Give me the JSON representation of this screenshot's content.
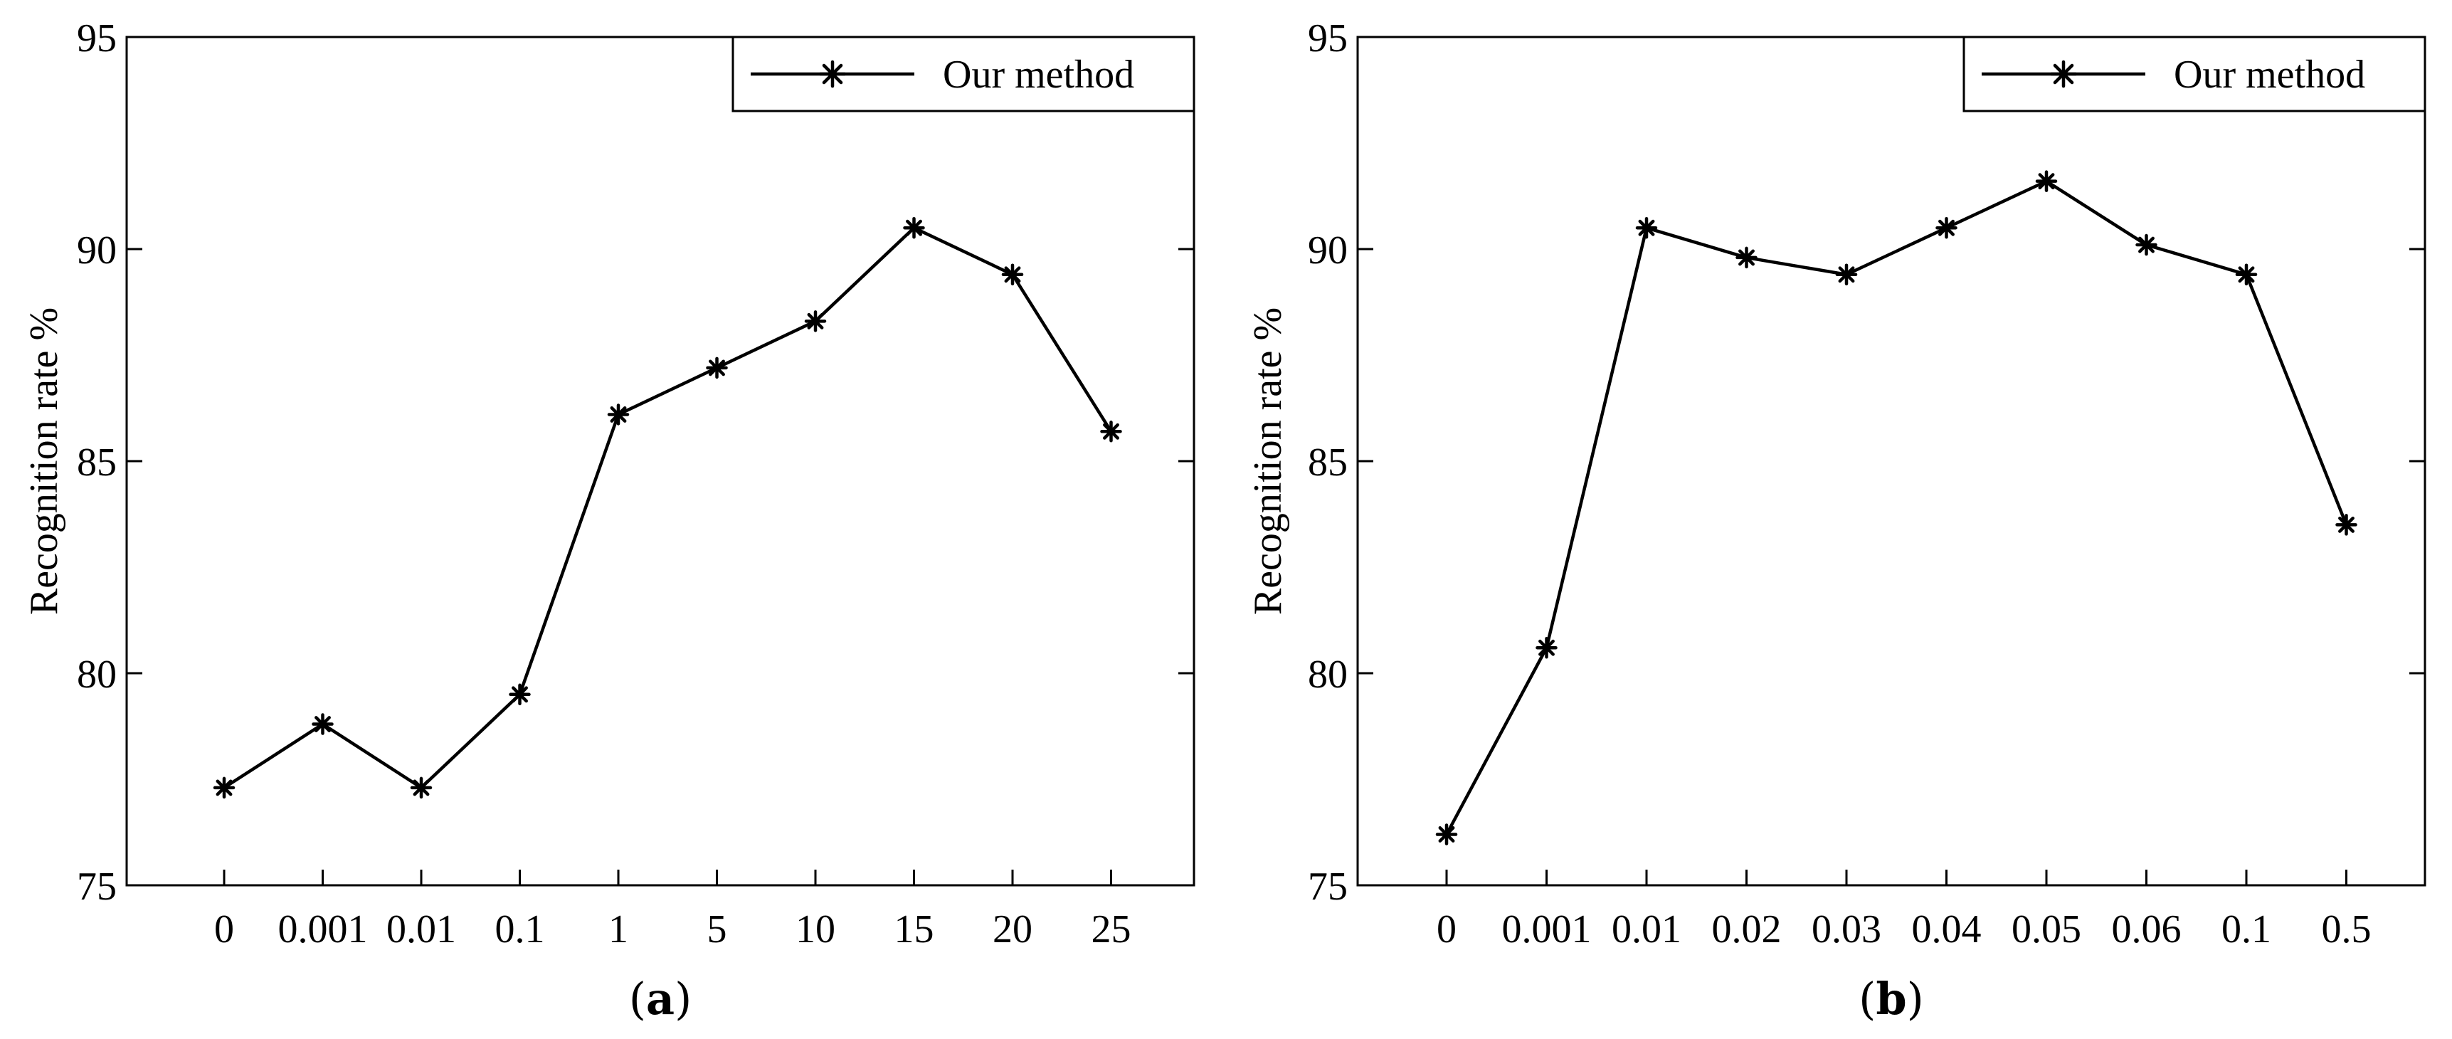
{
  "chart_data": [
    {
      "type": "line",
      "panel_label": "a",
      "title": "",
      "xlabel": "",
      "ylabel": "Recognition rate %",
      "categories": [
        "0",
        "0.001",
        "0.01",
        "0.1",
        "1",
        "5",
        "10",
        "15",
        "20",
        "25"
      ],
      "series": [
        {
          "name": "Our method",
          "values": [
            77.3,
            78.8,
            77.3,
            79.5,
            86.1,
            87.2,
            88.3,
            90.5,
            89.4,
            85.7
          ]
        }
      ],
      "ylim": [
        75,
        95
      ],
      "yticks": [
        "75",
        "80",
        "85",
        "90",
        "95"
      ],
      "legend": "top-right",
      "grid": false
    },
    {
      "type": "line",
      "panel_label": "b",
      "title": "",
      "xlabel": "",
      "ylabel": "Recognition rate %",
      "categories": [
        "0",
        "0.001",
        "0.01",
        "0.02",
        "0.03",
        "0.04",
        "0.05",
        "0.06",
        "0.1",
        "0.5"
      ],
      "series": [
        {
          "name": "Our method",
          "values": [
            76.2,
            80.6,
            90.5,
            89.8,
            89.4,
            90.5,
            91.6,
            90.1,
            89.4,
            83.5
          ]
        }
      ],
      "ylim": [
        75,
        95
      ],
      "yticks": [
        "75",
        "80",
        "85",
        "90",
        "95"
      ],
      "legend": "top-right",
      "grid": false
    }
  ]
}
